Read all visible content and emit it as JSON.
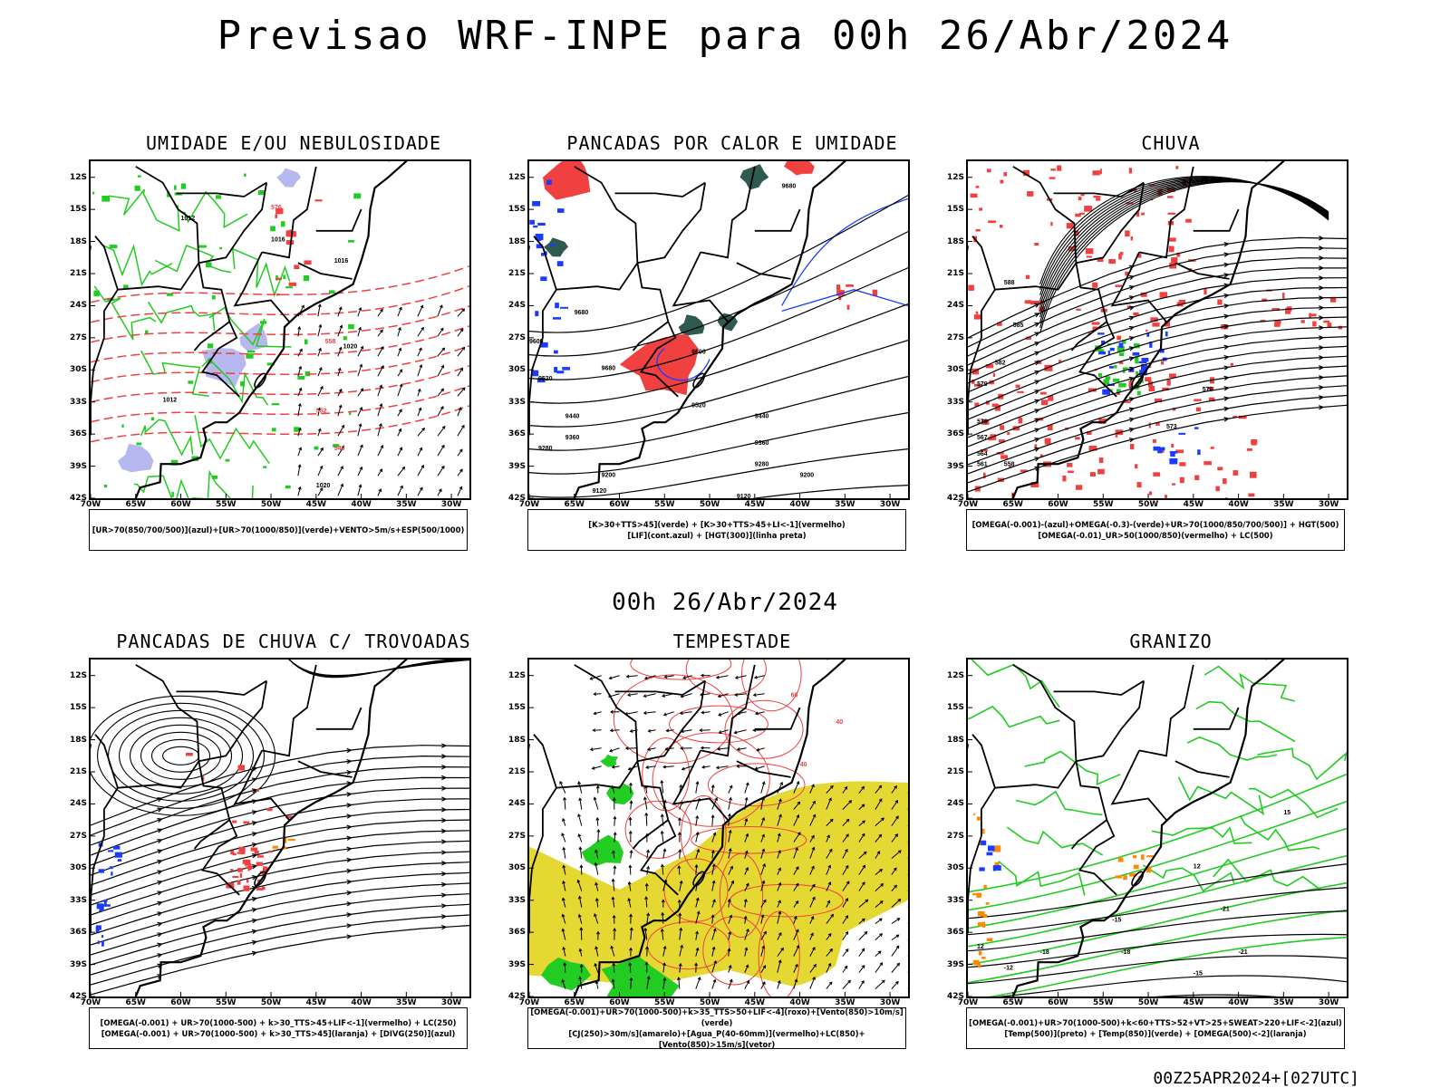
{
  "header": {
    "title": "Previsao WRF-INPE  para 00h 26/Abr/2024",
    "mid_date": "00h 26/Abr/2024",
    "footer_stamp": "00Z25APR2024+[027UTC]"
  },
  "axes": {
    "lat_labels": [
      "12S",
      "15S",
      "18S",
      "21S",
      "24S",
      "27S",
      "30S",
      "33S",
      "36S",
      "39S",
      "42S"
    ],
    "lon_labels": [
      "70W",
      "65W",
      "60W",
      "55W",
      "50W",
      "45W",
      "40W",
      "35W",
      "30W"
    ]
  },
  "panels": [
    {
      "title": "UMIDADE E/OU NEBULOSIDADE",
      "legend": [
        "[UR>70(850/700/500)](azul)+[UR>70(1000/850)](verde)+VENTO>5m/s+ESP(500/1000)"
      ],
      "contour_labels": [
        "1012",
        "1016",
        "1020",
        "1012",
        "1016",
        "1012",
        "1016",
        "1020",
        "1012",
        "1012",
        "1016",
        "1020",
        "576",
        "573",
        "570",
        "567",
        "564",
        "561",
        "558",
        "555",
        "552",
        "549"
      ]
    },
    {
      "title": "PANCADAS POR CALOR E UMIDADE",
      "legend": [
        "[K>30+TTS>45](verde) + [K>30+TTS>45+LI<-1](vermelho)",
        "[LIF](cont.azul) + [HGT(300)](linha preta)"
      ],
      "contour_labels": [
        "9680",
        "9680",
        "9600",
        "9680",
        "9600",
        "9520",
        "9440",
        "9360",
        "9280",
        "9200",
        "9120",
        "9520",
        "9440",
        "9360",
        "9280",
        "9200",
        "9120"
      ]
    },
    {
      "title": "CHUVA",
      "legend": [
        "[OMEGA(-0.001)-(azul)+OMEGA(-0.3)-(verde)+UR>70(1000/850/700/500)] + HGT(500)",
        "[OMEGA(-0.01)_UR>50(1000/850)(vermelho) + LC(500)"
      ],
      "contour_labels": [
        "588",
        "585",
        "582",
        "579",
        "576",
        "573",
        "570",
        "567",
        "564",
        "561",
        "558"
      ]
    },
    {
      "title": "PANCADAS DE CHUVA C/ TROVOADAS",
      "legend": [
        "[OMEGA(-0.001) + UR>70(1000-500) + k>30_TTS>45+LIF<-1](vermelho) + LC(250)",
        "[OMEGA(-0.001) + UR>70(1000-500) + k>30_TTS>45](laranja) + [DIVG(250)](azul)"
      ],
      "contour_labels": []
    },
    {
      "title": "TEMPESTADE",
      "legend": [
        "[OMEGA(-0.001)+UR>70(1000-500)+k>35_TTS>50+LIF<-4](roxo)+[Vento(850)>10m/s](verde)",
        "[CJ(250)>30m/s](amarelo)+[Agua_P(40-60mm)](vermelho)+LC(850)+[Vento(850)>15m/s](vetor)"
      ],
      "contour_labels": [
        "60",
        "40",
        "40"
      ]
    },
    {
      "title": "GRANIZO",
      "legend": [
        "[OMEGA(-0.001)+UR>70(1000-500)+k<60+TTS>52+VT>25+SWEAT>220+LIF<-2](azul)",
        "[Temp(500)](preto) + [Temp(850)](verde) + [OMEGA(500)<-2](laranja)"
      ],
      "contour_labels": [
        "12",
        "-12",
        "-15",
        "-18",
        "-21",
        "-15",
        "-18",
        "-21",
        "12",
        "15"
      ]
    }
  ],
  "colors": {
    "frame": "#000000",
    "green_contour": "#22cc22",
    "red_fill": "#f04040",
    "blue_contour": "#1a3cff",
    "dark_teal": "#2f5a50",
    "lavender": "#b8b8f0",
    "yellow_jet": "#e6d832",
    "orange": "#ff8800"
  }
}
